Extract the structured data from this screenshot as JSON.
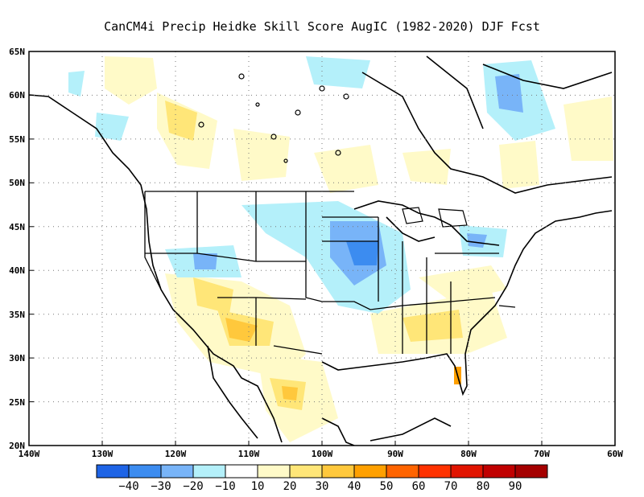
{
  "title": "CanCM4i Precip Heidke Skill Score AugIC (1982-2020) DJF Fcst",
  "map": {
    "lat_ticks": [
      "65N",
      "60N",
      "55N",
      "50N",
      "45N",
      "40N",
      "35N",
      "30N",
      "25N",
      "20N"
    ],
    "lon_ticks": [
      "140W",
      "130W",
      "120W",
      "110W",
      "100W",
      "90W",
      "80W",
      "70W",
      "60W"
    ],
    "lat_range": [
      20,
      65
    ],
    "lon_range": [
      -140,
      -60
    ],
    "grid": "dotted"
  },
  "colorbar": {
    "labels": [
      "-40",
      "-30",
      "-20",
      "-10",
      "10",
      "20",
      "30",
      "40",
      "50",
      "60",
      "70",
      "80",
      "90"
    ],
    "colors": [
      "#1e64e6",
      "#3c8cf0",
      "#78b4f8",
      "#b4f0fa",
      "#ffffff",
      "#fffac8",
      "#ffe678",
      "#ffc83c",
      "#ffa000",
      "#ff6400",
      "#ff3200",
      "#e11400",
      "#c00000",
      "#a50000"
    ]
  }
}
